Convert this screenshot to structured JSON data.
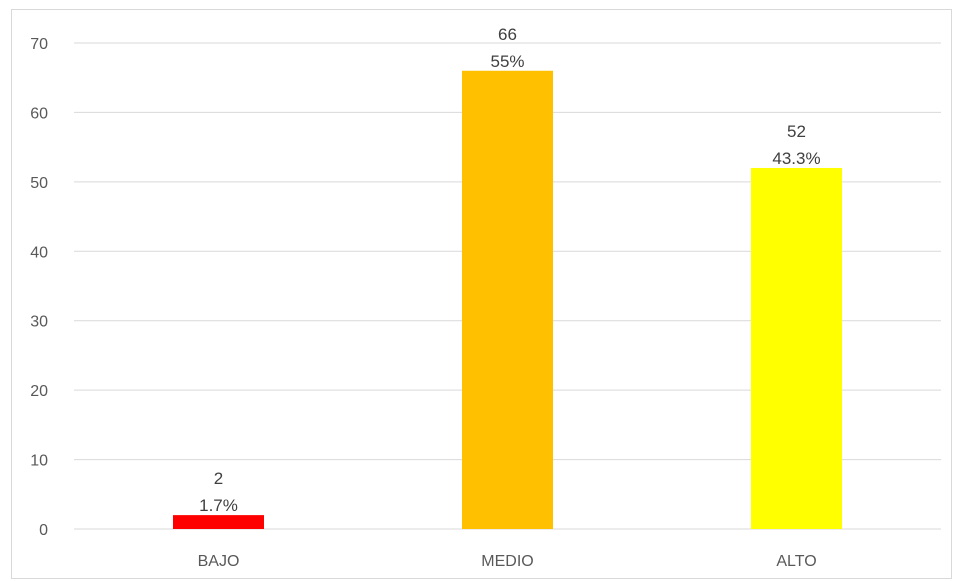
{
  "chart_data": {
    "type": "bar",
    "title": "",
    "xlabel": "",
    "ylabel": "",
    "categories": [
      "BAJO",
      "MEDIO",
      "ALTO"
    ],
    "values": [
      2,
      66,
      52
    ],
    "percent_labels": [
      "1.7%",
      "55%",
      "43.3%"
    ],
    "colors": [
      "#ff0000",
      "#ffc000",
      "#ffff00"
    ],
    "ylim": [
      0,
      70
    ],
    "yticks": [
      0,
      10,
      20,
      30,
      40,
      50,
      60,
      70
    ],
    "grid": true,
    "legend": "none"
  }
}
